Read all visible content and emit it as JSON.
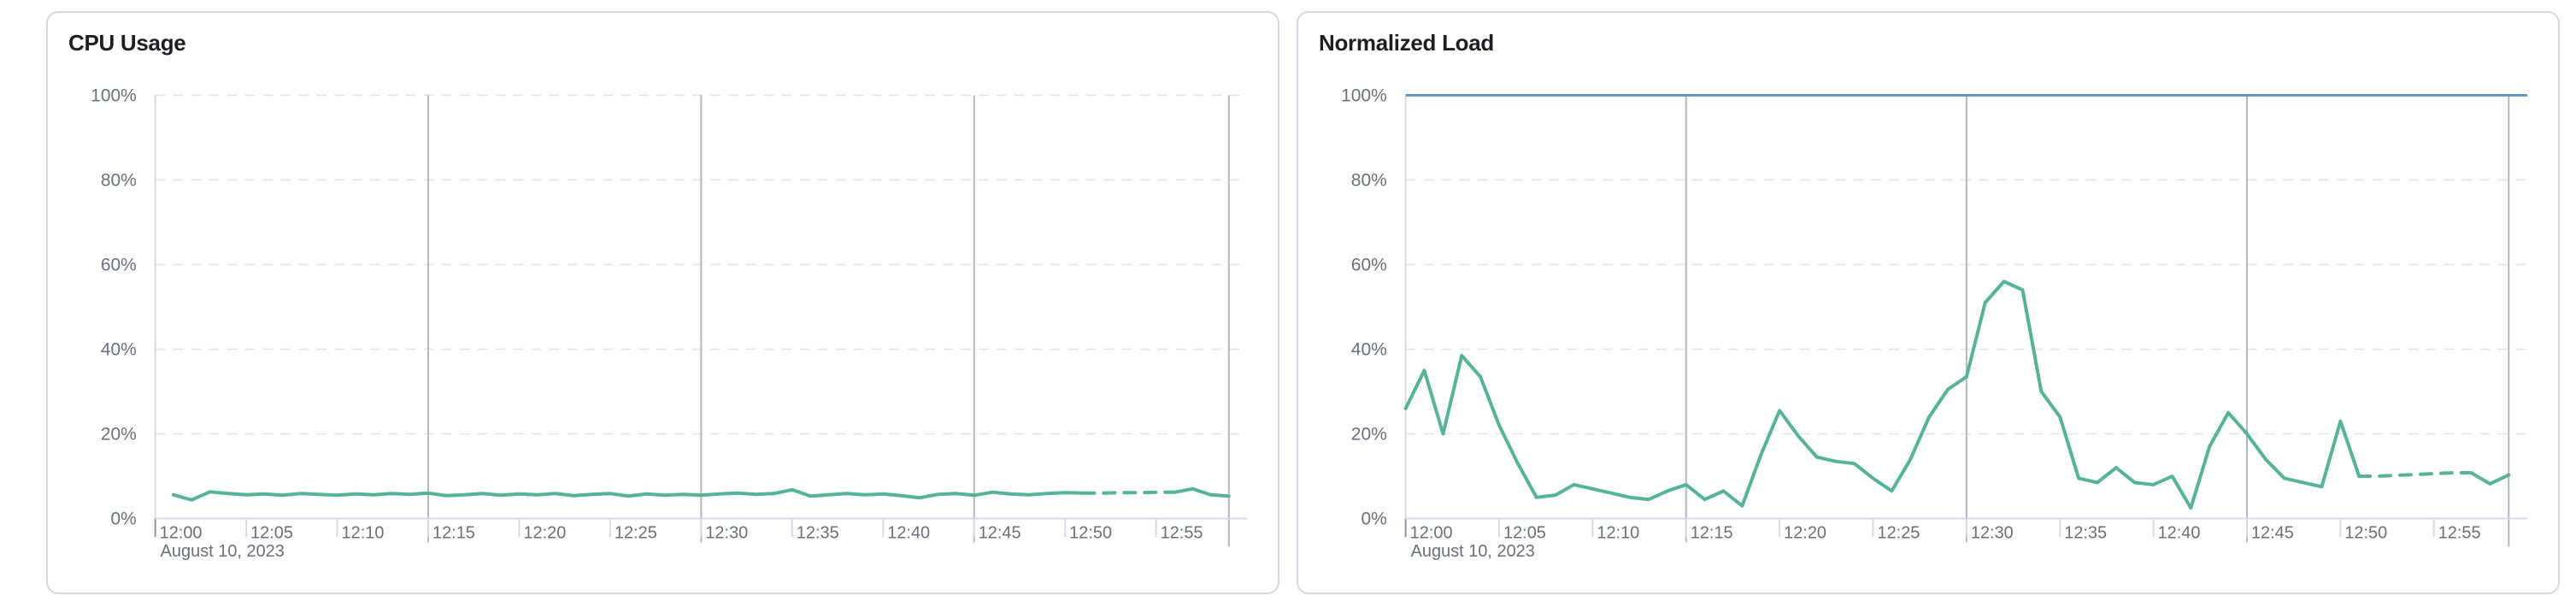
{
  "colors": {
    "series_green": "#54b399",
    "limit_blue": "#6092c0",
    "grid_dashed": "#e0e5f0",
    "axis_line": "#d6dce7",
    "major_gridline": "#b3b8c2",
    "minor_tick": "#d6dce7",
    "origin_tick": "#8e95a2",
    "axis_text": "#69707d",
    "title_text": "#1c1f26",
    "panel_border": "#d3dae6",
    "panel_background": "#ffffff"
  },
  "chart_data": [
    {
      "type": "line",
      "series_id": "cpu-usage",
      "title": "CPU Usage",
      "xlabel": "",
      "ylabel": "",
      "ylim": [
        0,
        100
      ],
      "y_tick_values": [
        0,
        20,
        40,
        60,
        80,
        100
      ],
      "y_tick_labels": [
        "0%",
        "20%",
        "40%",
        "60%",
        "80%",
        "100%"
      ],
      "x_tick_labels": [
        "12:00",
        "12:05",
        "12:10",
        "12:15",
        "12:20",
        "12:25",
        "12:30",
        "12:35",
        "12:40",
        "12:45",
        "12:50",
        "12:55"
      ],
      "x_tick_minutes": [
        0,
        5,
        10,
        15,
        20,
        25,
        30,
        35,
        40,
        45,
        50,
        55
      ],
      "x_axis_date_label": "August 10, 2023",
      "x_total_minutes": 60,
      "start_minute": 1,
      "values": [
        5.6,
        4.4,
        6.3,
        5.9,
        5.6,
        5.8,
        5.5,
        5.9,
        5.7,
        5.5,
        5.8,
        5.6,
        5.9,
        5.7,
        6.0,
        5.4,
        5.6,
        5.9,
        5.5,
        5.8,
        5.6,
        5.9,
        5.4,
        5.7,
        5.9,
        5.3,
        5.8,
        5.5,
        5.7,
        5.5,
        5.8,
        6.0,
        5.7,
        5.9,
        6.8,
        5.3,
        5.6,
        5.9,
        5.6,
        5.8,
        5.4,
        4.9,
        5.7,
        5.9,
        5.5,
        6.2,
        5.8,
        5.6,
        5.9,
        6.1,
        6.0,
        6.0,
        6.1,
        6.1,
        6.2,
        6.2,
        7.0,
        5.6,
        5.3
      ],
      "dashed_segment_minutes": [
        51,
        56
      ],
      "major_vertical_gridlines_minutes": [
        15,
        30,
        45
      ],
      "end_marker_minute": 59,
      "limit_line_value": null,
      "grid": true,
      "legend": "none"
    },
    {
      "type": "line",
      "series_id": "normalized-load",
      "title": "Normalized Load",
      "xlabel": "",
      "ylabel": "",
      "ylim": [
        0,
        100
      ],
      "y_tick_values": [
        0,
        20,
        40,
        60,
        80,
        100
      ],
      "y_tick_labels": [
        "0%",
        "20%",
        "40%",
        "60%",
        "80%",
        "100%"
      ],
      "x_tick_labels": [
        "12:00",
        "12:05",
        "12:10",
        "12:15",
        "12:20",
        "12:25",
        "12:30",
        "12:35",
        "12:40",
        "12:45",
        "12:50",
        "12:55"
      ],
      "x_tick_minutes": [
        0,
        5,
        10,
        15,
        20,
        25,
        30,
        35,
        40,
        45,
        50,
        55
      ],
      "x_axis_date_label": "August 10, 2023",
      "x_total_minutes": 60,
      "start_minute": 0,
      "values": [
        26,
        35,
        20,
        38.5,
        33.5,
        22,
        13,
        5,
        5.5,
        8,
        7,
        6,
        5,
        4.5,
        6.5,
        8,
        4.5,
        6.5,
        3,
        15,
        25.5,
        19.5,
        14.5,
        13.5,
        13,
        9.5,
        6.5,
        14,
        24,
        30.5,
        33.5,
        51,
        56,
        54,
        30,
        24,
        9.5,
        8.5,
        12,
        8.5,
        8,
        10,
        2.5,
        17,
        25,
        20,
        14,
        9.5,
        8.5,
        7.5,
        23,
        10,
        10,
        10.2,
        10.4,
        10.6,
        10.8,
        10.8,
        8.2,
        10.3
      ],
      "dashed_segment_minutes": [
        51,
        57
      ],
      "major_vertical_gridlines_minutes": [
        15,
        30,
        45
      ],
      "end_marker_minute": 59,
      "limit_line_value": 100,
      "grid": true,
      "legend": "none"
    }
  ]
}
